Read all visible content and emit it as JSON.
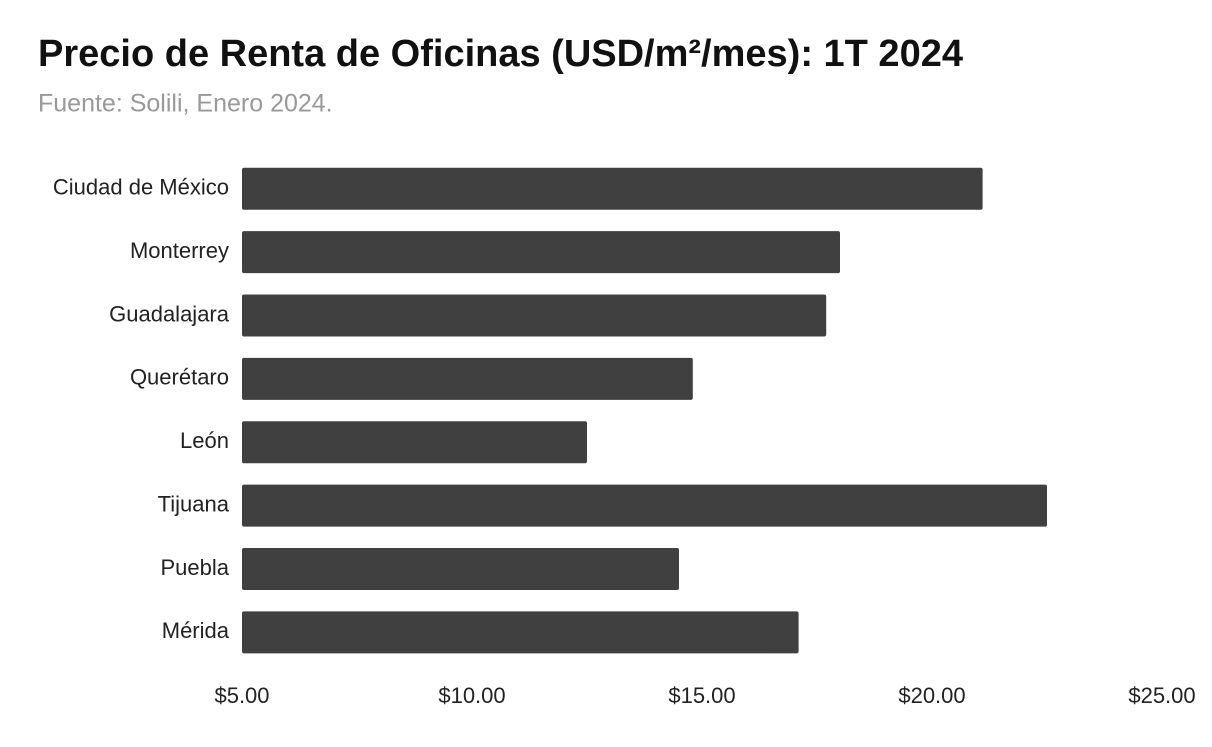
{
  "chart_data": {
    "type": "bar",
    "orientation": "horizontal",
    "title": "Precio de Renta de Oficinas (USD/m²/mes): 1T 2024",
    "subtitle": "Fuente: Solili, Enero 2024.",
    "categories": [
      "Ciudad de México",
      "Monterrey",
      "Guadalajara",
      "Querétaro",
      "León",
      "Tijuana",
      "Puebla",
      "Mérida"
    ],
    "values": [
      21.1,
      18.0,
      17.7,
      14.8,
      12.5,
      22.5,
      14.5,
      17.1
    ],
    "color": "#404040",
    "xlim": [
      5,
      25
    ],
    "xticks": [
      {
        "value": 5,
        "label": "$5.00"
      },
      {
        "value": 10,
        "label": "$10.00"
      },
      {
        "value": 15,
        "label": "$15.00"
      },
      {
        "value": 20,
        "label": "$20.00"
      },
      {
        "value": 25,
        "label": "$25.00"
      }
    ],
    "grid": false
  }
}
